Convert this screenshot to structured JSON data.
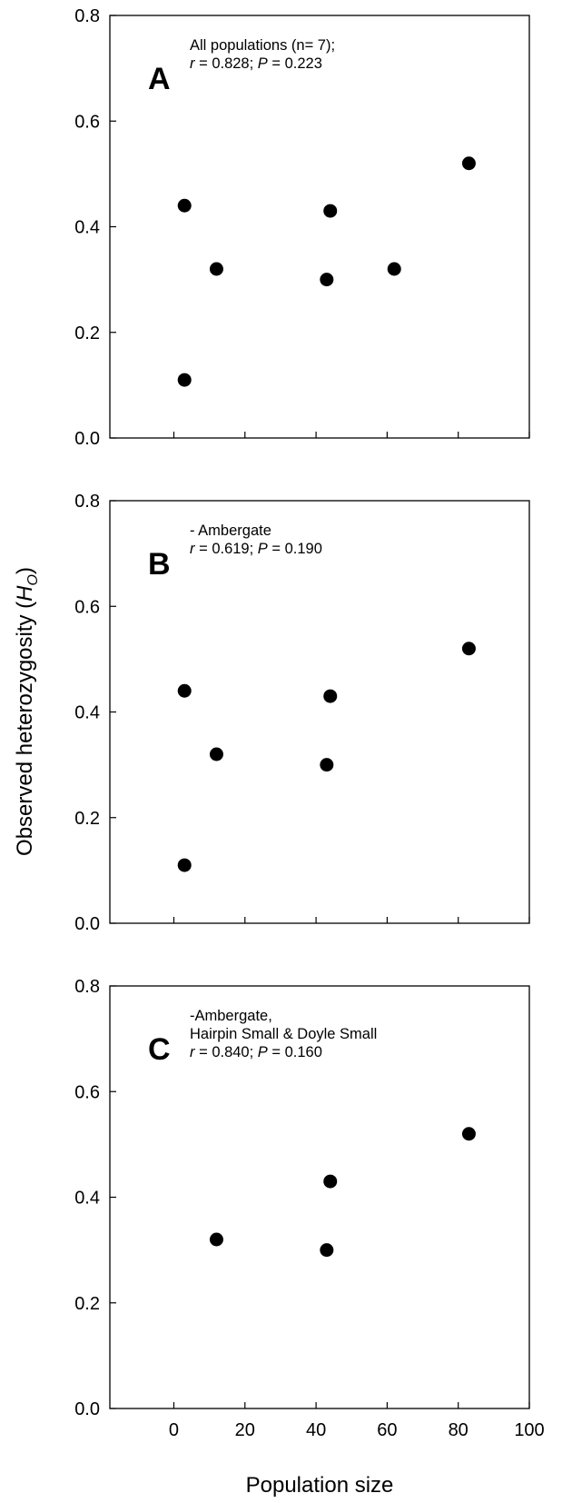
{
  "chart_data": {
    "type": "scatter",
    "xlabel": "Population size",
    "ylabel": "Observed heterozygosity (H",
    "ylabel_sub": "O",
    "ylabel_close": ")",
    "xlim": [
      -18,
      100
    ],
    "ylim": [
      0.0,
      0.8
    ],
    "xticks": [
      0,
      20,
      40,
      60,
      80,
      100
    ],
    "yticks": [
      0.0,
      0.2,
      0.4,
      0.6,
      0.8
    ],
    "grid": false,
    "marker_color": "#000000",
    "panels": [
      {
        "letter": "A",
        "line1": "All populations (n= 7);",
        "r_value": "0.828",
        "p_value": "0.223",
        "points": [
          {
            "x": 3,
            "y": 0.11
          },
          {
            "x": 3,
            "y": 0.44
          },
          {
            "x": 12,
            "y": 0.32
          },
          {
            "x": 43,
            "y": 0.3
          },
          {
            "x": 44,
            "y": 0.43
          },
          {
            "x": 62,
            "y": 0.32
          },
          {
            "x": 83,
            "y": 0.52
          }
        ]
      },
      {
        "letter": "B",
        "line1": "- Ambergate",
        "r_value": "0.619",
        "p_value": "0.190",
        "points": [
          {
            "x": 3,
            "y": 0.11
          },
          {
            "x": 3,
            "y": 0.44
          },
          {
            "x": 12,
            "y": 0.32
          },
          {
            "x": 43,
            "y": 0.3
          },
          {
            "x": 44,
            "y": 0.43
          },
          {
            "x": 83,
            "y": 0.52
          }
        ]
      },
      {
        "letter": "C",
        "line1": "-Ambergate,",
        "line2": "Hairpin Small & Doyle Small",
        "r_value": "0.840",
        "p_value": "0.160",
        "points": [
          {
            "x": 12,
            "y": 0.32
          },
          {
            "x": 43,
            "y": 0.3
          },
          {
            "x": 44,
            "y": 0.43
          },
          {
            "x": 83,
            "y": 0.52
          }
        ]
      }
    ]
  },
  "labels": {
    "r_symbol": "r",
    "p_symbol": "P",
    "eq": " = ",
    "sep": "; "
  }
}
